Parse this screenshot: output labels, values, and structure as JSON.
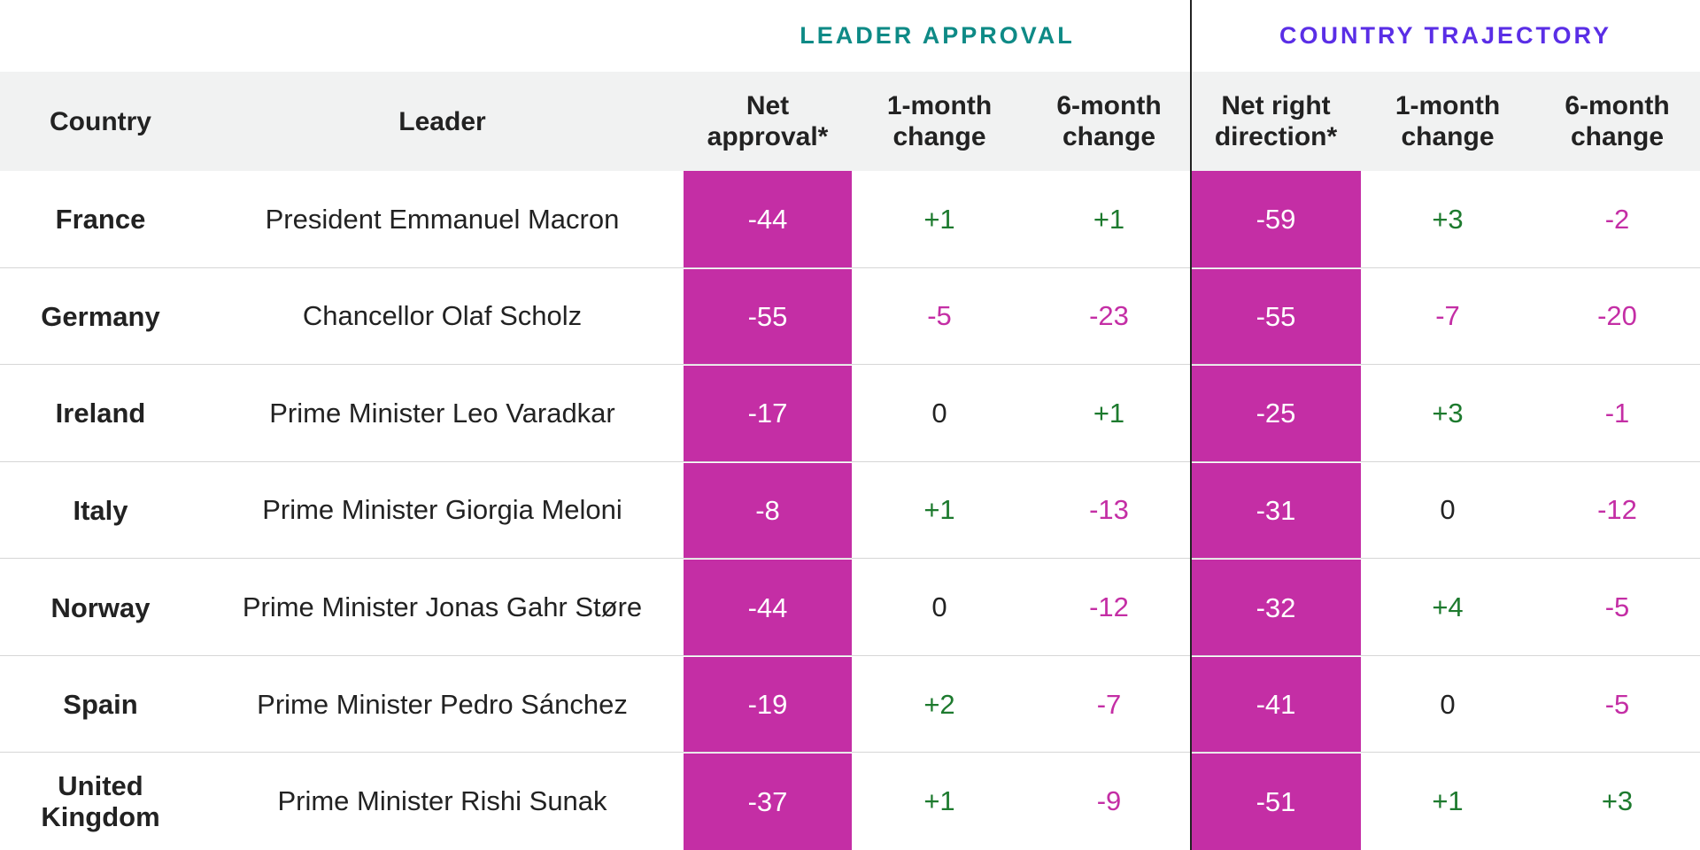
{
  "group_headers": [
    "LEADER APPROVAL",
    "COUNTRY TRAJECTORY"
  ],
  "table": {
    "columns": [
      "Country",
      "Leader",
      "Net approval*",
      "1-month change",
      "6-month change",
      "Net right direction*",
      "1-month change",
      "6-month change"
    ],
    "rows": [
      [
        "France",
        "President Emmanuel Macron",
        "-44",
        "+1",
        "+1",
        "-59",
        "+3",
        "-2"
      ],
      [
        "Germany",
        "Chancellor Olaf Scholz",
        "-55",
        "-5",
        "-23",
        "-55",
        "-7",
        "-20"
      ],
      [
        "Ireland",
        "Prime Minister Leo Varadkar",
        "-17",
        "0",
        "+1",
        "-25",
        "+3",
        "-1"
      ],
      [
        "Italy",
        "Prime Minister Giorgia Meloni",
        "-8",
        "+1",
        "-13",
        "-31",
        "0",
        "-12"
      ],
      [
        "Norway",
        "Prime Minister Jonas Gahr Støre",
        "-44",
        "0",
        "-12",
        "-32",
        "+4",
        "-5"
      ],
      [
        "Spain",
        "Prime Minister Pedro Sánchez",
        "-19",
        "+2",
        "-7",
        "-41",
        "0",
        "-5"
      ],
      [
        "United Kingdom",
        "Prime Minister Rishi Sunak",
        "-37",
        "+1",
        "-9",
        "-51",
        "+1",
        "+3"
      ]
    ]
  },
  "colors": {
    "group_headers": [
      "#0e8a86",
      "#5a2ee6"
    ],
    "positive": "#1d7a2e",
    "negative": "#c42ea5",
    "zero": "#222222",
    "highlight": "#c42ea5"
  }
}
